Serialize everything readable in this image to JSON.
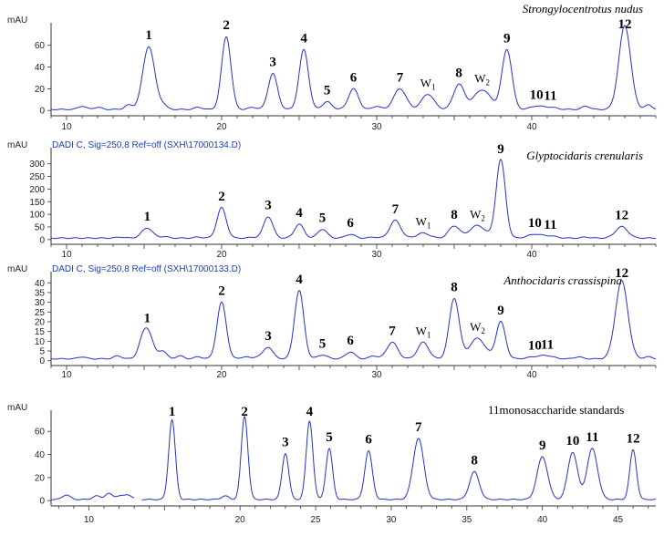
{
  "chart_data": [
    {
      "type": "line",
      "title": "Strongylocentrotus nudus",
      "header": "",
      "ylabel": "mAU",
      "xlim": [
        9,
        48
      ],
      "ylim": [
        -4,
        74
      ],
      "x_ticks": [
        10,
        20,
        30,
        40
      ],
      "y_ticks": [
        0,
        20,
        40,
        60
      ],
      "baseline": 1,
      "peaks": [
        {
          "label": "1",
          "rt": 15.3,
          "height": 58,
          "width": 0.38
        },
        {
          "label": "2",
          "rt": 20.3,
          "height": 67,
          "width": 0.3
        },
        {
          "label": "3",
          "rt": 23.3,
          "height": 33,
          "width": 0.3
        },
        {
          "label": "4",
          "rt": 25.3,
          "height": 55,
          "width": 0.3
        },
        {
          "label": "5",
          "rt": 26.8,
          "height": 7,
          "width": 0.3
        },
        {
          "label": "6",
          "rt": 28.5,
          "height": 19,
          "width": 0.32
        },
        {
          "label": "7",
          "rt": 31.5,
          "height": 19,
          "width": 0.4
        },
        {
          "label": "W",
          "sub": "1",
          "rt": 33.3,
          "height": 14,
          "width": 0.4
        },
        {
          "label": "8",
          "rt": 35.3,
          "height": 23,
          "width": 0.35
        },
        {
          "label": "W",
          "sub": "2",
          "rt": 36.8,
          "height": 18,
          "width": 0.55
        },
        {
          "label": "9",
          "rt": 38.4,
          "height": 55,
          "width": 0.32
        },
        {
          "label": "10",
          "rt": 40.3,
          "height": 3,
          "width": 0.4
        },
        {
          "label": "11",
          "rt": 41.2,
          "height": 2,
          "width": 0.4
        },
        {
          "label": "12",
          "rt": 46.0,
          "height": 77,
          "width": 0.38
        }
      ],
      "minor_peaks": [
        {
          "rt": 11.0,
          "height": 3
        },
        {
          "rt": 12.0,
          "height": 2
        },
        {
          "rt": 14.0,
          "height": 4
        },
        {
          "rt": 16.2,
          "height": 4
        },
        {
          "rt": 18.5,
          "height": 2
        },
        {
          "rt": 22.0,
          "height": 2
        },
        {
          "rt": 30.0,
          "height": 3
        },
        {
          "rt": 43.5,
          "height": 3
        },
        {
          "rt": 47.5,
          "height": 4
        }
      ]
    },
    {
      "type": "line",
      "title": "Glyptocidaris crenularis",
      "header": "DADI C, Sig=250,8 Ref=off (SXH\\17000134.D)",
      "ylabel": "mAU",
      "xlim": [
        9,
        48
      ],
      "ylim": [
        -15,
        335
      ],
      "x_ticks": [
        10,
        20,
        30,
        40
      ],
      "y_ticks": [
        0,
        50,
        100,
        150,
        200,
        250,
        300
      ],
      "baseline": 6,
      "peaks": [
        {
          "label": "1",
          "rt": 15.2,
          "height": 40,
          "width": 0.35
        },
        {
          "label": "2",
          "rt": 20.0,
          "height": 120,
          "width": 0.3
        },
        {
          "label": "3",
          "rt": 23.0,
          "height": 85,
          "width": 0.3
        },
        {
          "label": "4",
          "rt": 25.0,
          "height": 55,
          "width": 0.3
        },
        {
          "label": "5",
          "rt": 26.5,
          "height": 35,
          "width": 0.3
        },
        {
          "label": "6",
          "rt": 28.3,
          "height": 15,
          "width": 0.3
        },
        {
          "label": "7",
          "rt": 31.2,
          "height": 70,
          "width": 0.35
        },
        {
          "label": "W",
          "sub": "1",
          "rt": 33.0,
          "height": 20,
          "width": 0.4
        },
        {
          "label": "8",
          "rt": 35.0,
          "height": 48,
          "width": 0.35
        },
        {
          "label": "W",
          "sub": "2",
          "rt": 36.5,
          "height": 50,
          "width": 0.5
        },
        {
          "label": "9",
          "rt": 38.0,
          "height": 310,
          "width": 0.3
        },
        {
          "label": "10",
          "rt": 40.2,
          "height": 15,
          "width": 0.45
        },
        {
          "label": "11",
          "rt": 41.2,
          "height": 8,
          "width": 0.4
        },
        {
          "label": "12",
          "rt": 45.8,
          "height": 45,
          "width": 0.4
        }
      ],
      "minor_peaks": [
        {
          "rt": 13.5,
          "height": 4
        },
        {
          "rt": 16.3,
          "height": 6
        },
        {
          "rt": 18.5,
          "height": 4
        },
        {
          "rt": 22.0,
          "height": 3
        },
        {
          "rt": 29.8,
          "height": 4
        },
        {
          "rt": 43.5,
          "height": 4
        }
      ]
    },
    {
      "type": "line",
      "title": "Anthocidaris crassispina",
      "header": "DADI C, Sig=250,8 Ref=off (SXH\\17000133.D)",
      "ylabel": "mAU",
      "xlim": [
        9,
        48
      ],
      "ylim": [
        -2,
        42
      ],
      "x_ticks": [
        10,
        20,
        30,
        40
      ],
      "y_ticks": [
        0,
        5,
        10,
        15,
        20,
        25,
        30,
        35,
        40
      ],
      "baseline": 1,
      "peaks": [
        {
          "label": "1",
          "rt": 15.2,
          "height": 15,
          "width": 0.35
        },
        {
          "label": "2",
          "rt": 20.0,
          "height": 29,
          "width": 0.3
        },
        {
          "label": "3",
          "rt": 23.0,
          "height": 6,
          "width": 0.3
        },
        {
          "label": "4",
          "rt": 25.0,
          "height": 35,
          "width": 0.3
        },
        {
          "label": "5",
          "rt": 26.5,
          "height": 2,
          "width": 0.3
        },
        {
          "label": "6",
          "rt": 28.3,
          "height": 3.5,
          "width": 0.3
        },
        {
          "label": "7",
          "rt": 31.0,
          "height": 8.5,
          "width": 0.35
        },
        {
          "label": "W",
          "sub": "1",
          "rt": 33.0,
          "height": 8.5,
          "width": 0.35
        },
        {
          "label": "8",
          "rt": 35.0,
          "height": 31,
          "width": 0.32
        },
        {
          "label": "W",
          "sub": "2",
          "rt": 36.5,
          "height": 10.5,
          "width": 0.5
        },
        {
          "label": "9",
          "rt": 38.0,
          "height": 19,
          "width": 0.3
        },
        {
          "label": "10",
          "rt": 40.2,
          "height": 1,
          "width": 0.45
        },
        {
          "label": "11",
          "rt": 41.0,
          "height": 1.5,
          "width": 0.4
        },
        {
          "label": "12",
          "rt": 45.8,
          "height": 40,
          "width": 0.4
        }
      ],
      "minor_peaks": [
        {
          "rt": 11.0,
          "height": 1
        },
        {
          "rt": 13.3,
          "height": 1.5
        },
        {
          "rt": 14.8,
          "height": 3
        },
        {
          "rt": 16.2,
          "height": 4
        },
        {
          "rt": 17.3,
          "height": 1.5
        },
        {
          "rt": 18.5,
          "height": 1
        },
        {
          "rt": 21.5,
          "height": 1
        },
        {
          "rt": 22.3,
          "height": 1
        },
        {
          "rt": 29.8,
          "height": 1.5
        },
        {
          "rt": 43.0,
          "height": 1
        },
        {
          "rt": 47.5,
          "height": 1
        }
      ]
    },
    {
      "type": "line",
      "title": "11monosaccharide standards",
      "header": "",
      "ylabel": "mAU",
      "xlim": [
        7.5,
        47.5
      ],
      "ylim": [
        -3,
        72
      ],
      "x_ticks": [
        10,
        20,
        25,
        30,
        35,
        40,
        45
      ],
      "y_ticks": [
        0,
        20,
        40,
        60
      ],
      "baseline": 1,
      "gap": [
        13.0,
        13.5
      ],
      "peaks": [
        {
          "label": "1",
          "rt": 15.5,
          "height": 69,
          "width": 0.22
        },
        {
          "label": "2",
          "rt": 20.3,
          "height": 72,
          "width": 0.22
        },
        {
          "label": "3",
          "rt": 23.0,
          "height": 40,
          "width": 0.22
        },
        {
          "label": "4",
          "rt": 24.6,
          "height": 68,
          "width": 0.22
        },
        {
          "label": "5",
          "rt": 25.9,
          "height": 44,
          "width": 0.22
        },
        {
          "label": "6",
          "rt": 28.5,
          "height": 42,
          "width": 0.25
        },
        {
          "label": "7",
          "rt": 31.8,
          "height": 53,
          "width": 0.35
        },
        {
          "label": "8",
          "rt": 35.5,
          "height": 24,
          "width": 0.32
        },
        {
          "label": "9",
          "rt": 40.0,
          "height": 37,
          "width": 0.35
        },
        {
          "label": "10",
          "rt": 42.0,
          "height": 41,
          "width": 0.32
        },
        {
          "label": "11",
          "rt": 43.3,
          "height": 44,
          "width": 0.35
        },
        {
          "label": "12",
          "rt": 46.0,
          "height": 43,
          "width": 0.22
        }
      ],
      "minor_peaks": [
        {
          "rt": 8.5,
          "height": 4
        },
        {
          "rt": 10.5,
          "height": 3
        },
        {
          "rt": 11.3,
          "height": 5
        },
        {
          "rt": 12.0,
          "height": 3
        },
        {
          "rt": 12.6,
          "height": 4
        },
        {
          "rt": 19.0,
          "height": 3
        }
      ]
    }
  ]
}
